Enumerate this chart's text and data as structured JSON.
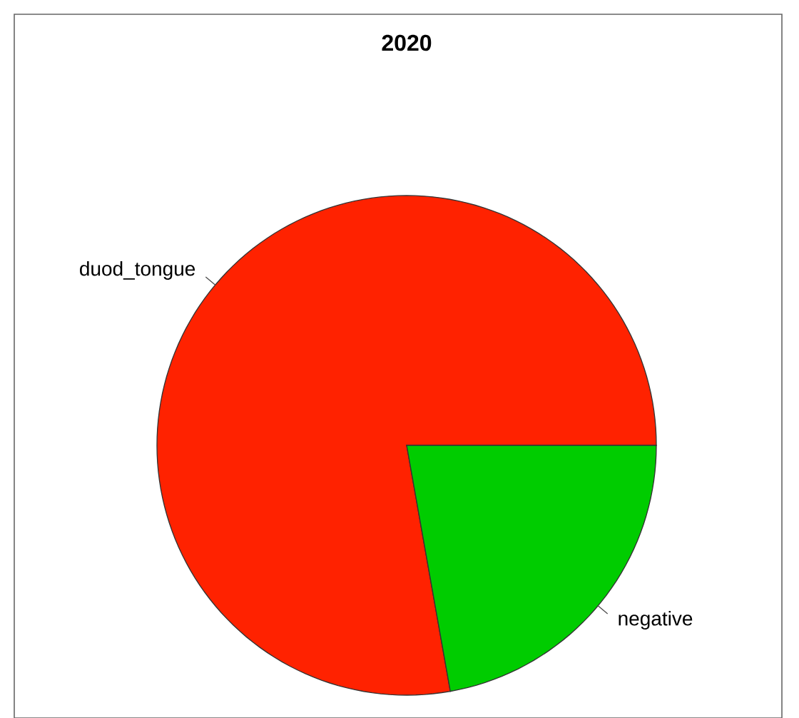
{
  "chart_data": {
    "type": "pie",
    "title": "2020",
    "categories": [
      "duod_tongue",
      "negative"
    ],
    "values": [
      77.8,
      22.2
    ],
    "colors": [
      "#ff2200",
      "#00cc00"
    ]
  }
}
